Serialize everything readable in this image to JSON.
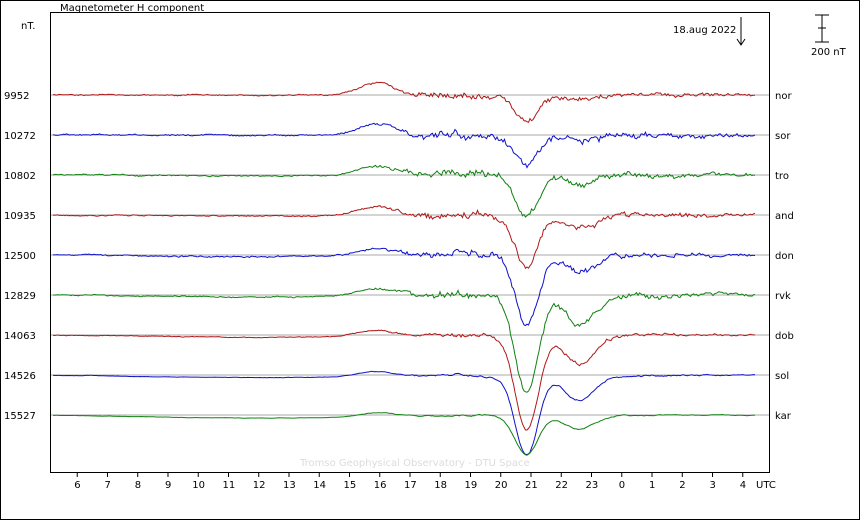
{
  "chart_data": {
    "type": "line",
    "title": "Magnetometer H component",
    "ylabel": "nT.",
    "date_label": "18.aug 2022",
    "scale_label": "200 nT",
    "scale_nT": 200,
    "xlabel": "UTC",
    "x_ticks": [
      "6",
      "7",
      "8",
      "9",
      "10",
      "11",
      "12",
      "13",
      "14",
      "15",
      "16",
      "17",
      "18",
      "19",
      "20",
      "21",
      "22",
      "23",
      "0",
      "1",
      "2",
      "3",
      "4"
    ],
    "x_range_hours": [
      5.1,
      28.9
    ],
    "credit": "Tromso Geophysical Observatory - DTU Space",
    "colors": {
      "red": "#b01818",
      "blue": "#1010c8",
      "green": "#108010"
    },
    "stations": [
      {
        "code": "nor",
        "baseline": "9952",
        "color": "#b01818",
        "amp": 0.35,
        "dip": 25,
        "seed": 11
      },
      {
        "code": "sor",
        "baseline": "10272",
        "color": "#1010c8",
        "amp": 0.45,
        "dip": 30,
        "seed": 23
      },
      {
        "code": "tro",
        "baseline": "10802",
        "color": "#108010",
        "amp": 0.5,
        "dip": 40,
        "seed": 37
      },
      {
        "code": "and",
        "baseline": "10935",
        "color": "#b01818",
        "amp": 0.55,
        "dip": 50,
        "seed": 41
      },
      {
        "code": "don",
        "baseline": "12500",
        "color": "#1010c8",
        "amp": 0.7,
        "dip": 70,
        "seed": 53
      },
      {
        "code": "rvk",
        "baseline": "12829",
        "color": "#108010",
        "amp": 0.75,
        "dip": 100,
        "seed": 67
      },
      {
        "code": "dob",
        "baseline": "14063",
        "color": "#b01818",
        "amp": 0.6,
        "dip": 95,
        "seed": 79
      },
      {
        "code": "sol",
        "baseline": "14526",
        "color": "#1010c8",
        "amp": 0.45,
        "dip": 80,
        "seed": 83
      },
      {
        "code": "kar",
        "baseline": "15527",
        "color": "#108010",
        "amp": 0.4,
        "dip": 40,
        "seed": 97
      }
    ]
  }
}
